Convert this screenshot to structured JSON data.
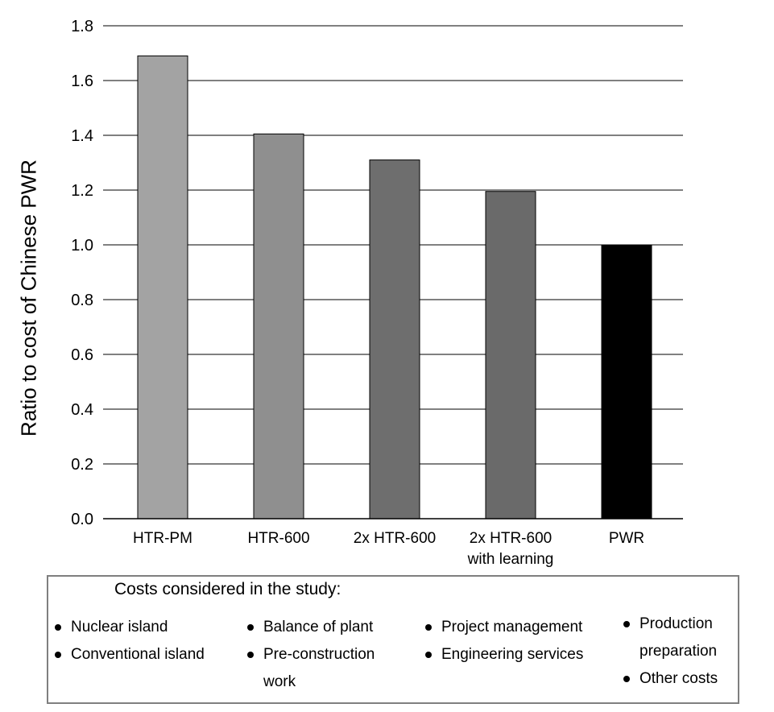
{
  "chart_data": {
    "type": "bar",
    "ylabel": "Ratio to cost of Chinese PWR",
    "ylim": [
      0,
      1.8
    ],
    "yticks": [
      "0.0",
      "0.2",
      "0.4",
      "0.6",
      "0.8",
      "1.0",
      "1.2",
      "1.4",
      "1.6",
      "1.8"
    ],
    "grid": true,
    "categories": [
      [
        "HTR-PM"
      ],
      [
        "HTR-600"
      ],
      [
        "2x HTR-600"
      ],
      [
        "2x HTR-600",
        "with learning"
      ],
      [
        "PWR"
      ]
    ],
    "values": [
      1.69,
      1.405,
      1.31,
      1.195,
      1.0
    ],
    "bar_colors": [
      "#a3a3a3",
      "#8f8f8f",
      "#6e6e6e",
      "#6a6a6a",
      "#000000"
    ]
  },
  "legend": {
    "title": "Costs considered in the study:",
    "columns": [
      {
        "items": [
          {
            "lines": [
              "Nuclear island"
            ]
          },
          {
            "lines": [
              "Conventional island"
            ]
          }
        ]
      },
      {
        "items": [
          {
            "lines": [
              "Balance of plant"
            ]
          },
          {
            "lines": [
              "Pre-construction",
              "work"
            ]
          }
        ]
      },
      {
        "items": [
          {
            "lines": [
              "Project management"
            ]
          },
          {
            "lines": [
              "Engineering services"
            ]
          }
        ]
      },
      {
        "items": [
          {
            "lines": [
              "Production",
              "preparation"
            ]
          },
          {
            "lines": [
              "Other costs"
            ]
          }
        ]
      }
    ]
  }
}
